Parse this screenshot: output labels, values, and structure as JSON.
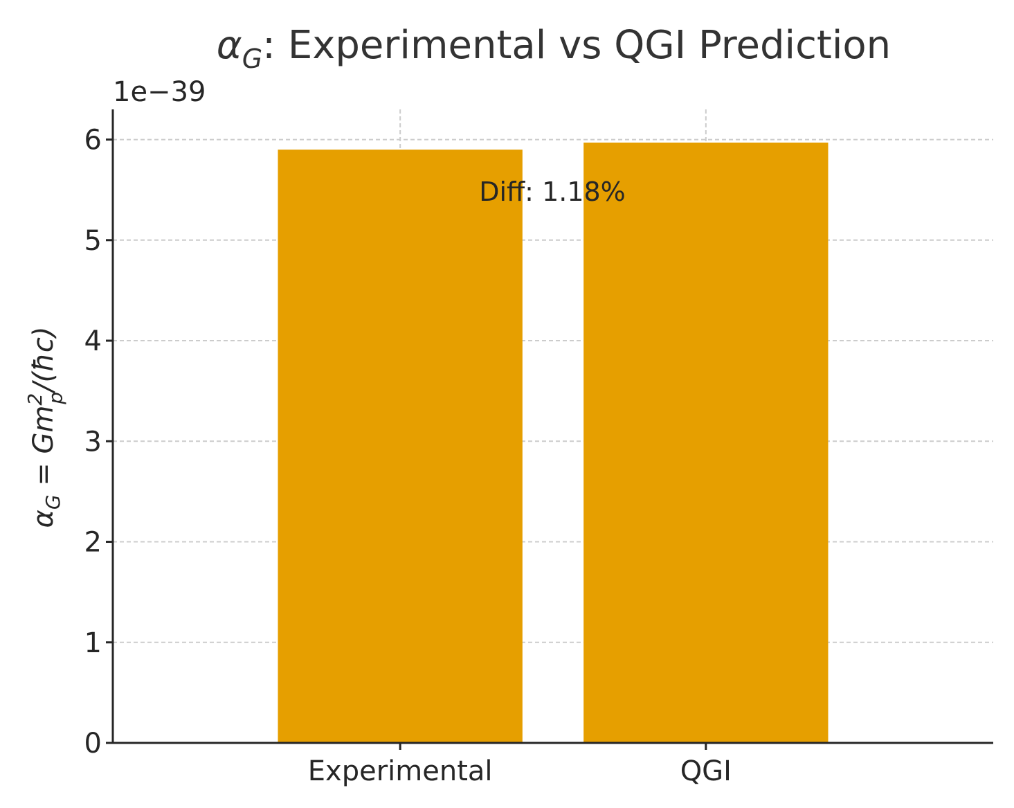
{
  "chart_data": {
    "type": "bar",
    "title": {
      "alpha": "α",
      "subscript": "G",
      "rest": ": Experimental vs QGI Prediction"
    },
    "ylabel": {
      "alpha": "α",
      "alpha_sub": "G",
      "equals": " = Gm",
      "m_sup": "2",
      "m_sub": "p",
      "rest": "/(ħc)"
    },
    "xlabel": "",
    "offset_text": "1e−39",
    "categories": [
      "Experimental",
      "QGI"
    ],
    "values": [
      5.9,
      5.97
    ],
    "value_scale": 1e-39,
    "ylim": [
      0,
      6.3
    ],
    "yticks": [
      0,
      1,
      2,
      3,
      4,
      5,
      6
    ],
    "annotation": "Diff: 1.18%",
    "grid": true,
    "bar_color": "#E69F00",
    "legend": "none"
  }
}
